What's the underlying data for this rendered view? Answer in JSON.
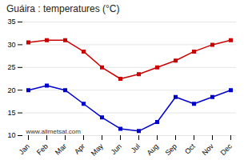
{
  "chart_data": {
    "type": "line",
    "title": "Guáira : temperatures (°C)",
    "categories": [
      "Jan",
      "Feb",
      "Mar",
      "Apr",
      "May",
      "Jun",
      "Jul",
      "Aug",
      "Sep",
      "Oct",
      "Nov",
      "Dec"
    ],
    "series": [
      {
        "color": "#cc0000",
        "marker": "square",
        "values": [
          30.5,
          31.0,
          31.0,
          28.5,
          25.0,
          22.5,
          23.5,
          25.0,
          26.5,
          28.5,
          30.0,
          31.0
        ]
      },
      {
        "color": "#0000cc",
        "marker": "square",
        "values": [
          20.0,
          21.0,
          20.0,
          17.0,
          14.0,
          11.5,
          11.0,
          13.0,
          18.5,
          17.0,
          18.5,
          20.0
        ]
      }
    ],
    "ylim": [
      10,
      35
    ],
    "yticks": [
      10,
      15,
      20,
      25,
      30,
      35
    ],
    "grid": true,
    "annotations": [
      "www.allmetsat.com"
    ]
  }
}
